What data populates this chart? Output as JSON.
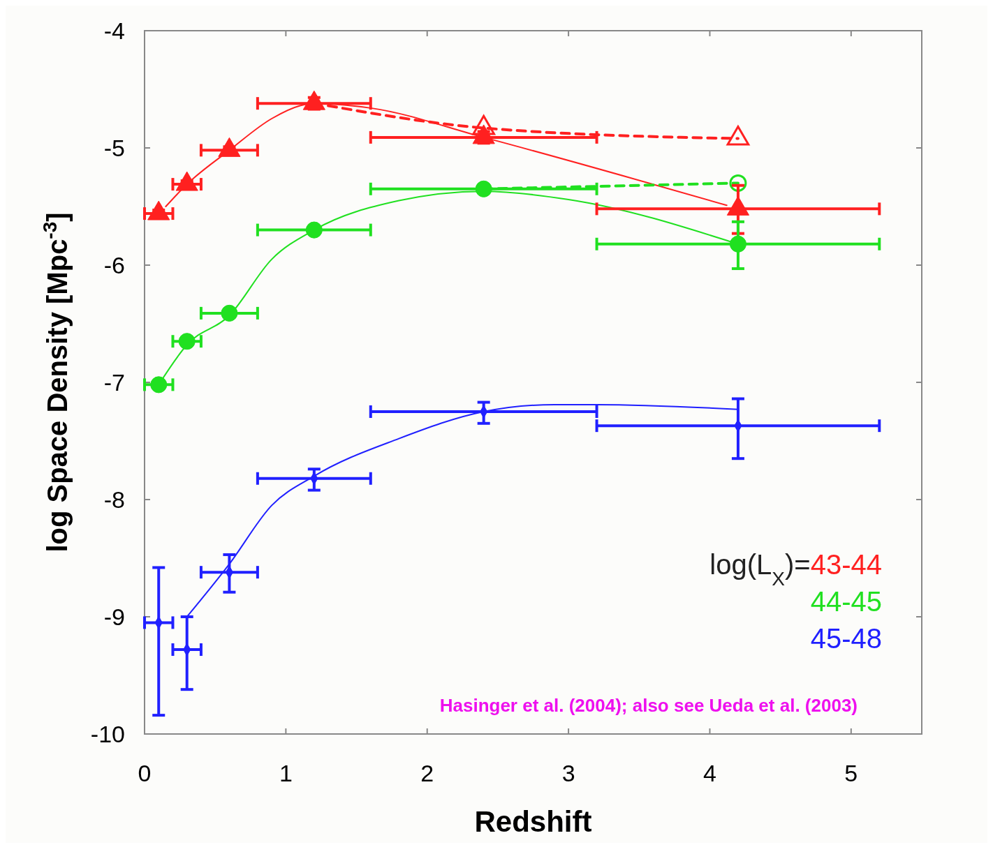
{
  "chart_data": {
    "type": "scatter",
    "xlabel": "Redshift",
    "ylabel": "log Space Density [Mpc$^{-3}$]",
    "xlim": [
      0,
      5.5
    ],
    "ylim": [
      -10,
      -4
    ],
    "xticks": [
      0,
      1,
      2,
      3,
      4,
      5
    ],
    "yticks": [
      -10,
      -9,
      -8,
      -7,
      -6,
      -5,
      -4
    ],
    "grid": false,
    "legend": "bottom right",
    "legend_title": "log(L$_{X}$)=",
    "annotations": [
      "Hasinger et al. (2004); also see Ueda et al. (2003)"
    ],
    "series": [
      {
        "type": "line",
        "color": "#ff2020",
        "line_style": "solid",
        "marker": "none",
        "x": [
          0.15,
          0.3,
          0.6,
          0.9,
          1.1,
          1.2,
          1.6,
          2.4,
          4.12
        ],
        "values": [
          -5.5,
          -5.31,
          -5.02,
          -4.75,
          -4.64,
          -4.62,
          -4.66,
          -4.91,
          -5.49
        ]
      },
      {
        "type": "line",
        "color": "#20e020",
        "line_style": "solid",
        "marker": "none",
        "x": [
          0.1,
          0.3,
          0.6,
          0.9,
          1.2,
          1.8,
          2.4,
          3.0,
          4.2
        ],
        "values": [
          -7.02,
          -6.68,
          -6.43,
          -5.95,
          -5.7,
          -5.45,
          -5.37,
          -5.44,
          -5.82
        ]
      },
      {
        "type": "line",
        "color": "#2020ff",
        "line_style": "solid",
        "marker": "none",
        "x": [
          0.3,
          0.6,
          0.9,
          1.2,
          1.8,
          2.4,
          2.9,
          3.2,
          4.2
        ],
        "values": [
          -9.0,
          -8.55,
          -8.05,
          -7.8,
          -7.48,
          -7.25,
          -7.19,
          -7.19,
          -7.23
        ]
      },
      {
        "type": "line",
        "color": "#ff2020",
        "line_style": "dashed",
        "marker": "none",
        "x": [
          1.3,
          2.4,
          4.2
        ],
        "values": [
          -4.64,
          -4.83,
          -4.92
        ]
      },
      {
        "type": "line",
        "color": "#20e020",
        "line_style": "dashed",
        "marker": "none",
        "x": [
          2.4,
          4.2
        ],
        "values": [
          -5.35,
          -5.3
        ]
      },
      {
        "type": "scatter",
        "color": "#ff2020",
        "marker": "triangle",
        "x": [
          2.4,
          4.2
        ],
        "values": [
          -4.83,
          -4.92
        ]
      },
      {
        "type": "scatter",
        "color": "#20e020",
        "marker": "circle",
        "x": [
          4.2
        ],
        "values": [
          -5.3
        ]
      },
      {
        "name": "43-44",
        "color": "#ff2020",
        "marker": "triangle",
        "x": [
          0.1,
          0.3,
          0.6,
          1.2,
          2.4,
          4.2
        ],
        "values": [
          -5.56,
          -5.31,
          -5.02,
          -4.62,
          -4.91,
          -5.52
        ],
        "errors": [
          0.03,
          0.03,
          0.03,
          0.05,
          0.05,
          [
            -5.73,
            -5.32
          ]
        ],
        "xerrors": [
          [
            0,
            0.2
          ],
          [
            0.2,
            0.4
          ],
          [
            0.4,
            0.8
          ],
          [
            0.8,
            1.6
          ],
          [
            1.6,
            3.2
          ],
          [
            3.2,
            5.2
          ]
        ]
      },
      {
        "name": "44-45",
        "color": "#20e020",
        "marker": "circle",
        "x": [
          0.1,
          0.3,
          0.6,
          1.2,
          2.4,
          4.2
        ],
        "values": [
          -7.02,
          -6.65,
          -6.41,
          -5.7,
          -5.35,
          -5.82
        ],
        "errors": [
          null,
          null,
          null,
          null,
          null,
          [
            -6.03,
            -5.63
          ]
        ],
        "xerrors": [
          [
            0,
            0.2
          ],
          [
            0.2,
            0.4
          ],
          [
            0.4,
            0.8
          ],
          [
            0.8,
            1.6
          ],
          [
            1.6,
            3.2
          ],
          [
            3.2,
            5.2
          ]
        ]
      },
      {
        "name": "45-48",
        "color": "#2020ff",
        "marker": "diamond",
        "x": [
          0.1,
          0.3,
          0.6,
          1.2,
          2.4,
          4.2
        ],
        "values": [
          -9.05,
          -9.28,
          -8.62,
          -7.82,
          -7.25,
          -7.37
        ],
        "errors": [
          [
            -9.84,
            -8.58
          ],
          [
            -9.62,
            -9.0
          ],
          [
            -8.79,
            -8.47
          ],
          [
            -7.92,
            -7.74
          ],
          [
            -7.35,
            -7.17
          ],
          [
            -7.65,
            -7.14
          ]
        ],
        "xerrors": [
          [
            0,
            0.2
          ],
          [
            0.2,
            0.4
          ],
          [
            0.4,
            0.8
          ],
          [
            0.8,
            1.6
          ],
          [
            1.6,
            3.2
          ],
          [
            3.2,
            5.2
          ]
        ]
      }
    ]
  }
}
